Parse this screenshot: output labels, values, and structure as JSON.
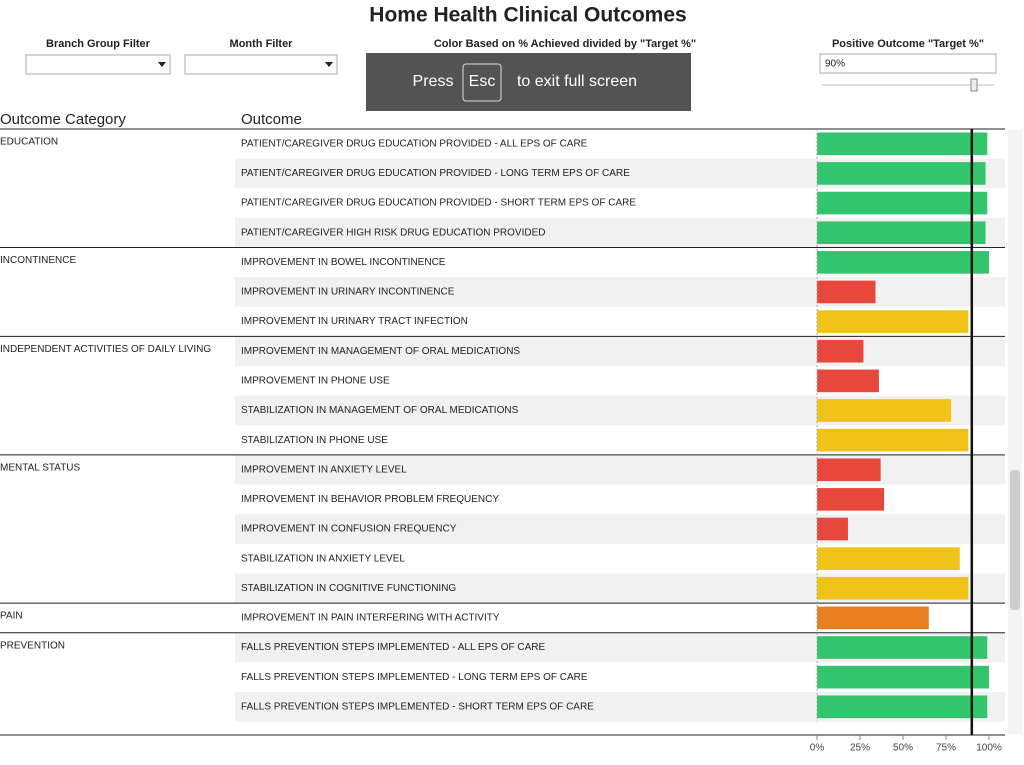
{
  "header": {
    "title": "Home Health Clinical Outcomes",
    "filters": [
      "Branch Group Filter",
      "Month Filter"
    ],
    "color_legend_title": "Color Based on % Achieved divided by \"Target %\"",
    "target_title": "Positive Outcome \"Target %\""
  },
  "fullscreen_notice": {
    "before": "Press",
    "key": "Esc",
    "after": "to exit full screen"
  },
  "chart_data": {
    "type": "bar",
    "orientation": "horizontal",
    "column_headers": [
      "Outcome Category",
      "Outcome"
    ],
    "outcome_category": [
      "EDUCATION",
      null,
      null,
      null,
      "INCONTINENCE",
      null,
      null,
      "INDEPENDENT ACTIVITIES OF DAILY LIVING",
      null,
      null,
      null,
      "MENTAL STATUS",
      null,
      null,
      null,
      null,
      "PAIN",
      "PREVENTION",
      null,
      null
    ],
    "categories": [
      "PATIENT/CAREGIVER DRUG EDUCATION PROVIDED - ALL EPS OF CARE",
      "PATIENT/CAREGIVER DRUG EDUCATION PROVIDED - LONG TERM EPS OF CARE",
      "PATIENT/CAREGIVER DRUG EDUCATION PROVIDED - SHORT TERM EPS OF CARE",
      "PATIENT/CAREGIVER HIGH RISK DRUG EDUCATION PROVIDED",
      "IMPROVEMENT IN BOWEL INCONTINENCE",
      "IMPROVEMENT IN URINARY INCONTINENCE",
      "IMPROVEMENT IN URINARY TRACT INFECTION",
      "IMPROVEMENT IN MANAGEMENT OF ORAL MEDICATIONS",
      "IMPROVEMENT IN PHONE USE",
      "STABILIZATION IN MANAGEMENT OF ORAL MEDICATIONS",
      "STABILIZATION IN PHONE USE",
      "IMPROVEMENT IN ANXIETY LEVEL",
      "IMPROVEMENT IN BEHAVIOR PROBLEM FREQUENCY",
      "IMPROVEMENT IN CONFUSION FREQUENCY",
      "STABILIZATION IN ANXIETY LEVEL",
      "STABILIZATION IN COGNITIVE FUNCTIONING",
      "IMPROVEMENT IN PAIN INTERFERING WITH ACTIVITY",
      "FALLS PREVENTION STEPS IMPLEMENTED - ALL EPS OF CARE",
      "FALLS PREVENTION STEPS IMPLEMENTED - LONG TERM EPS OF CARE",
      "FALLS PREVENTION STEPS IMPLEMENTED - SHORT TERM EPS OF CARE"
    ],
    "values": [
      99,
      98,
      99,
      98,
      100,
      34,
      88,
      27,
      36,
      78,
      88,
      37,
      39,
      18,
      83,
      88,
      65,
      99,
      100,
      99
    ],
    "colors": [
      "#33c46e",
      "#33c46e",
      "#33c46e",
      "#33c46e",
      "#33c46e",
      "#e8473b",
      "#f0c31a",
      "#e8473b",
      "#e8473b",
      "#f0c31a",
      "#f0c31a",
      "#e8473b",
      "#e8473b",
      "#e8473b",
      "#f0c31a",
      "#f0c31a",
      "#e67e22",
      "#33c46e",
      "#33c46e",
      "#33c46e"
    ],
    "target": {
      "value": 90,
      "label": "90%"
    },
    "xlim": [
      0,
      100
    ],
    "xticks": [
      {
        "value": 0,
        "label": "0%"
      },
      {
        "value": 25,
        "label": "25%"
      },
      {
        "value": 50,
        "label": "50%"
      },
      {
        "value": 75,
        "label": "75%"
      },
      {
        "value": 100,
        "label": "100%"
      }
    ]
  }
}
